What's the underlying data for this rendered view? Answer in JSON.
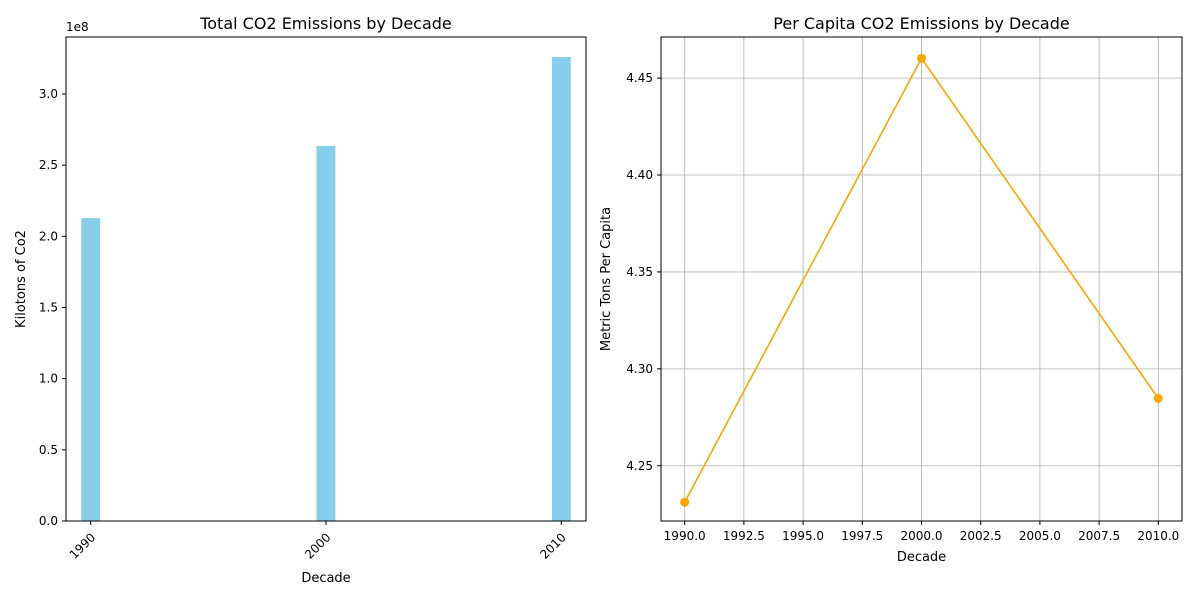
{
  "chart_data": [
    {
      "type": "bar",
      "title": "Total CO2 Emissions by Decade",
      "xlabel": "Decade",
      "ylabel": "Kilotons of Co2",
      "offset_label": "1e8",
      "categories": [
        "1990",
        "2000",
        "2010"
      ],
      "x": [
        1990,
        2000,
        2010
      ],
      "values": [
        212800000,
        263500000,
        326000000
      ],
      "ylim": [
        0,
        340000000
      ],
      "yticks": [
        0,
        50000000,
        100000000,
        150000000,
        200000000,
        250000000,
        300000000
      ],
      "ytick_labels": [
        "0.0",
        "0.5",
        "1.0",
        "1.5",
        "2.0",
        "2.5",
        "3.0"
      ],
      "color": "#87ceeb",
      "grid": false
    },
    {
      "type": "line",
      "title": "Per Capita CO2 Emissions by Decade",
      "xlabel": "Decade",
      "ylabel": "Metric Tons Per Capita",
      "x": [
        1990,
        2000,
        2010
      ],
      "values": [
        4.2312,
        4.4602,
        4.2847
      ],
      "xlim": [
        1989,
        2011
      ],
      "ylim": [
        4.2215,
        4.4712
      ],
      "xticks": [
        1990,
        1992.5,
        1995,
        1997.5,
        2000,
        2002.5,
        2005,
        2007.5,
        2010
      ],
      "xtick_labels": [
        "1990.0",
        "1992.5",
        "1995.0",
        "1997.5",
        "2000.0",
        "2002.5",
        "2005.0",
        "2007.5",
        "2010.0"
      ],
      "yticks": [
        4.25,
        4.3,
        4.35,
        4.4,
        4.45
      ],
      "ytick_labels": [
        "4.25",
        "4.30",
        "4.35",
        "4.40",
        "4.45"
      ],
      "color": "#ffa500",
      "marker": "circle",
      "grid": true
    }
  ]
}
